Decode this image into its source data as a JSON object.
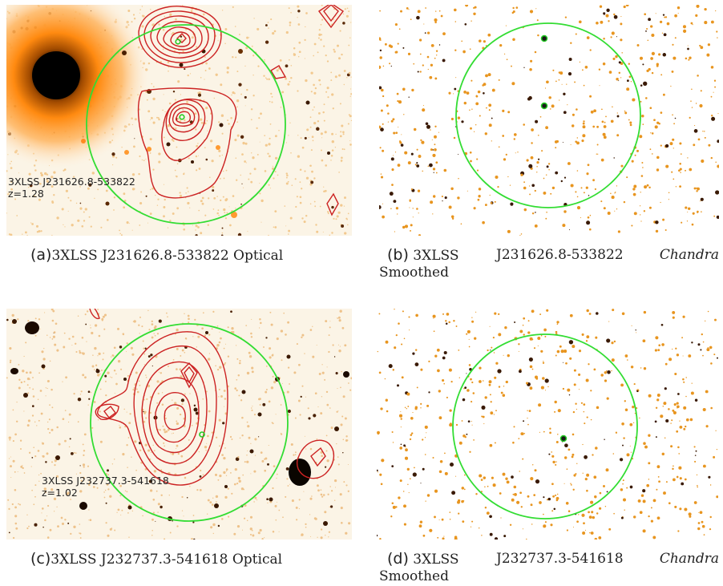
{
  "colors": {
    "circle": "#33dd33",
    "contour": "#cc2222",
    "source_marker": "#22cc22",
    "background_field": "#fbf6ec",
    "star_halo": "#ff8c00",
    "speck": "#e08a1c",
    "dark_speck": "#3a1a05"
  },
  "panels": {
    "a": {
      "kind": "Optical",
      "overlay": {
        "name": "3XLSS J231626.8-533822",
        "redshift": "z=1.28"
      },
      "caption": {
        "tag": "(a)",
        "text": "3XLSS J231626.8-533822 Optical"
      }
    },
    "b": {
      "kind": "Chandra Smoothed",
      "caption": {
        "tag": "(b)",
        "name": "3XLSS",
        "id": "J231626.8-533822",
        "instrument": "Chandra",
        "line2": "Smoothed"
      }
    },
    "c": {
      "kind": "Optical",
      "overlay": {
        "name": "3XLSS J232737.3-541618",
        "redshift": "z=1.02"
      },
      "caption": {
        "tag": "(c)",
        "text": "3XLSS J232737.3-541618 Optical"
      }
    },
    "d": {
      "kind": "Chandra Smoothed",
      "caption": {
        "tag": "(d)",
        "name": "3XLSS",
        "id": "J232737.3-541618",
        "instrument": "Chandra",
        "line2": "Smoothed"
      }
    }
  }
}
